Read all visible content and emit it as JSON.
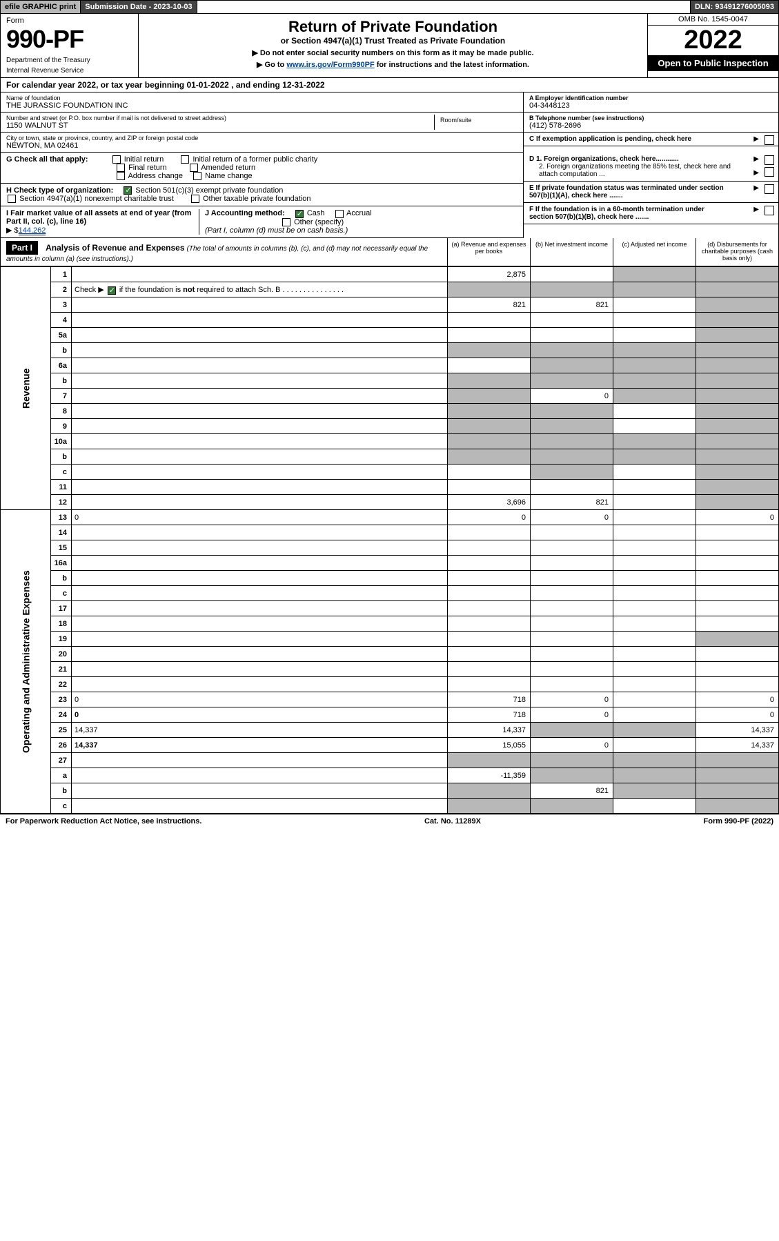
{
  "topbar": {
    "efile": "efile GRAPHIC print",
    "submission_label": "Submission Date - 2023-10-03",
    "dln": "DLN: 93491276005093"
  },
  "header": {
    "form_label": "Form",
    "form_number": "990-PF",
    "dept1": "Department of the Treasury",
    "dept2": "Internal Revenue Service",
    "title": "Return of Private Foundation",
    "subtitle": "or Section 4947(a)(1) Trust Treated as Private Foundation",
    "inst1": "▶ Do not enter social security numbers on this form as it may be made public.",
    "inst2_pre": "▶ Go to ",
    "inst2_link": "www.irs.gov/Form990PF",
    "inst2_post": " for instructions and the latest information.",
    "omb": "OMB No. 1545-0047",
    "year": "2022",
    "open": "Open to Public Inspection"
  },
  "cal_year": "For calendar year 2022, or tax year beginning 01-01-2022              , and ending 12-31-2022",
  "foundation": {
    "name_label": "Name of foundation",
    "name": "THE JURASSIC FOUNDATION INC",
    "addr_label": "Number and street (or P.O. box number if mail is not delivered to street address)",
    "addr": "1150 WALNUT ST",
    "room_label": "Room/suite",
    "room": "",
    "city_label": "City or town, state or province, country, and ZIP or foreign postal code",
    "city": "NEWTON, MA  02461",
    "ein_label": "A Employer identification number",
    "ein": "04-3448123",
    "phone_label": "B Telephone number (see instructions)",
    "phone": "(412) 578-2696",
    "c_label": "C If exemption application is pending, check here"
  },
  "g": {
    "label": "G Check all that apply:",
    "opts": [
      "Initial return",
      "Initial return of a former public charity",
      "Final return",
      "Amended return",
      "Address change",
      "Name change"
    ]
  },
  "h": {
    "label": "H Check type of organization:",
    "opt1": "Section 501(c)(3) exempt private foundation",
    "opt2": "Section 4947(a)(1) nonexempt charitable trust",
    "opt3": "Other taxable private foundation"
  },
  "i": {
    "label": "I Fair market value of all assets at end of year (from Part II, col. (c), line 16)",
    "val_pre": "▶ $",
    "val": "144,262"
  },
  "j": {
    "label": "J Accounting method:",
    "cash": "Cash",
    "accrual": "Accrual",
    "other": "Other (specify)",
    "note": "(Part I, column (d) must be on cash basis.)"
  },
  "d": {
    "d1": "D 1. Foreign organizations, check here............",
    "d2": "2. Foreign organizations meeting the 85% test, check here and attach computation ..."
  },
  "e": "E  If private foundation status was terminated under section 507(b)(1)(A), check here .......",
  "f": "F  If the foundation is in a 60-month termination under section 507(b)(1)(B), check here .......",
  "part1": {
    "hdr": "Part I",
    "title": "Analysis of Revenue and Expenses",
    "sub": "(The total of amounts in columns (b), (c), and (d) may not necessarily equal the amounts in column (a) (see instructions).)",
    "cols": {
      "a": "(a) Revenue and expenses per books",
      "b": "(b) Net investment income",
      "c": "(c) Adjusted net income",
      "d": "(d) Disbursements for charitable purposes (cash basis only)"
    }
  },
  "sections": {
    "revenue": "Revenue",
    "expenses": "Operating and Administrative Expenses"
  },
  "lines": [
    {
      "n": "1",
      "d": "",
      "a": "2,875",
      "b": "",
      "c": "",
      "shade_c": true,
      "shade_d": true
    },
    {
      "n": "2",
      "d": "",
      "a": "",
      "b": "",
      "c": "",
      "shade_a": true,
      "shade_b": true,
      "shade_c": true,
      "shade_d": true,
      "check": true
    },
    {
      "n": "3",
      "d": "",
      "a": "821",
      "b": "821",
      "c": "",
      "shade_d": true
    },
    {
      "n": "4",
      "d": "",
      "a": "",
      "b": "",
      "c": "",
      "shade_d": true
    },
    {
      "n": "5a",
      "d": "",
      "a": "",
      "b": "",
      "c": "",
      "shade_d": true
    },
    {
      "n": "b",
      "d": "",
      "a": "",
      "b": "",
      "c": "",
      "shade_a": true,
      "shade_b": true,
      "shade_c": true,
      "shade_d": true
    },
    {
      "n": "6a",
      "d": "",
      "a": "",
      "b": "",
      "c": "",
      "shade_b": true,
      "shade_c": true,
      "shade_d": true
    },
    {
      "n": "b",
      "d": "",
      "a": "",
      "b": "",
      "c": "",
      "shade_a": true,
      "shade_b": true,
      "shade_c": true,
      "shade_d": true
    },
    {
      "n": "7",
      "d": "",
      "a": "",
      "b": "0",
      "c": "",
      "shade_a": true,
      "shade_c": true,
      "shade_d": true
    },
    {
      "n": "8",
      "d": "",
      "a": "",
      "b": "",
      "c": "",
      "shade_a": true,
      "shade_b": true,
      "shade_d": true
    },
    {
      "n": "9",
      "d": "",
      "a": "",
      "b": "",
      "c": "",
      "shade_a": true,
      "shade_b": true,
      "shade_d": true
    },
    {
      "n": "10a",
      "d": "",
      "a": "",
      "b": "",
      "c": "",
      "shade_a": true,
      "shade_b": true,
      "shade_c": true,
      "shade_d": true
    },
    {
      "n": "b",
      "d": "",
      "a": "",
      "b": "",
      "c": "",
      "shade_a": true,
      "shade_b": true,
      "shade_c": true,
      "shade_d": true
    },
    {
      "n": "c",
      "d": "",
      "a": "",
      "b": "",
      "c": "",
      "shade_b": true,
      "shade_d": true
    },
    {
      "n": "11",
      "d": "",
      "a": "",
      "b": "",
      "c": "",
      "shade_d": true
    },
    {
      "n": "12",
      "d": "",
      "a": "3,696",
      "b": "821",
      "c": "",
      "bold": true,
      "shade_d": true
    },
    {
      "n": "13",
      "d": "0",
      "a": "0",
      "b": "0",
      "c": ""
    },
    {
      "n": "14",
      "d": "",
      "a": "",
      "b": "",
      "c": ""
    },
    {
      "n": "15",
      "d": "",
      "a": "",
      "b": "",
      "c": ""
    },
    {
      "n": "16a",
      "d": "",
      "a": "",
      "b": "",
      "c": ""
    },
    {
      "n": "b",
      "d": "",
      "a": "",
      "b": "",
      "c": ""
    },
    {
      "n": "c",
      "d": "",
      "a": "",
      "b": "",
      "c": ""
    },
    {
      "n": "17",
      "d": "",
      "a": "",
      "b": "",
      "c": ""
    },
    {
      "n": "18",
      "d": "",
      "a": "",
      "b": "",
      "c": ""
    },
    {
      "n": "19",
      "d": "",
      "a": "",
      "b": "",
      "c": "",
      "shade_d": true
    },
    {
      "n": "20",
      "d": "",
      "a": "",
      "b": "",
      "c": ""
    },
    {
      "n": "21",
      "d": "",
      "a": "",
      "b": "",
      "c": ""
    },
    {
      "n": "22",
      "d": "",
      "a": "",
      "b": "",
      "c": ""
    },
    {
      "n": "23",
      "d": "0",
      "a": "718",
      "b": "0",
      "c": ""
    },
    {
      "n": "24",
      "d": "0",
      "a": "718",
      "b": "0",
      "c": "",
      "bold": true
    },
    {
      "n": "25",
      "d": "14,337",
      "a": "14,337",
      "b": "",
      "c": "",
      "shade_b": true,
      "shade_c": true
    },
    {
      "n": "26",
      "d": "14,337",
      "a": "15,055",
      "b": "0",
      "c": "",
      "bold": true
    },
    {
      "n": "27",
      "d": "",
      "a": "",
      "b": "",
      "c": "",
      "shade_a": true,
      "shade_b": true,
      "shade_c": true,
      "shade_d": true
    },
    {
      "n": "a",
      "d": "",
      "a": "-11,359",
      "b": "",
      "c": "",
      "bold": true,
      "shade_b": true,
      "shade_c": true,
      "shade_d": true
    },
    {
      "n": "b",
      "d": "",
      "a": "",
      "b": "821",
      "c": "",
      "bold": true,
      "shade_a": true,
      "shade_c": true,
      "shade_d": true
    },
    {
      "n": "c",
      "d": "",
      "a": "",
      "b": "",
      "c": "",
      "bold": true,
      "shade_a": true,
      "shade_b": true,
      "shade_d": true
    }
  ],
  "footer": {
    "left": "For Paperwork Reduction Act Notice, see instructions.",
    "mid": "Cat. No. 11289X",
    "right": "Form 990-PF (2022)"
  },
  "colors": {
    "shade": "#b8b8b8",
    "dark": "#444444",
    "link": "#0047ab",
    "check": "#2e7d32"
  }
}
